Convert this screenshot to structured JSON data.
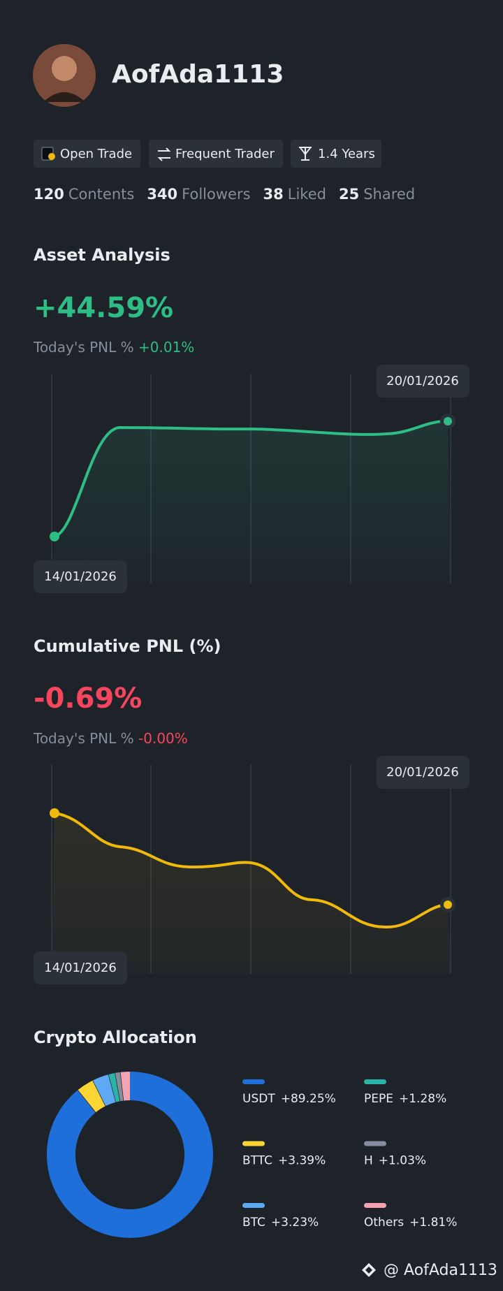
{
  "profile": {
    "name": "AofAda1113",
    "badges": [
      "Open Trade",
      "Frequent Trader",
      "1.4 Years"
    ],
    "stats": [
      {
        "value": 120,
        "label": "Contents"
      },
      {
        "value": 340,
        "label": "Followers"
      },
      {
        "value": 38,
        "label": "Liked"
      },
      {
        "value": 25,
        "label": "Shared"
      }
    ]
  },
  "asset_analysis": {
    "title": "Asset Analysis",
    "value": "+44.59%",
    "pnl_label": "Today's PNL %",
    "pnl_value": "+0.01%",
    "start_date": "14/01/2026",
    "end_date": "20/01/2026"
  },
  "cumulative_pnl": {
    "title": "Cumulative PNL (%)",
    "value": "-0.69%",
    "pnl_label": "Today's PNL %",
    "pnl_value": "-0.00%",
    "start_date": "14/01/2026",
    "end_date": "20/01/2026"
  },
  "chart_data": {
    "type": "donut",
    "title": "Crypto Allocation",
    "categories": [
      "USDT",
      "BTTC",
      "BTC",
      "PEPE",
      "H",
      "Others"
    ],
    "values": [
      89.25,
      3.39,
      3.23,
      1.28,
      1.03,
      1.81
    ],
    "value_labels": [
      "+89.25%",
      "+3.39%",
      "+3.23%",
      "+1.28%",
      "+1.03%",
      "+1.81%"
    ],
    "colors": [
      "#1f6fdb",
      "#fcd535",
      "#5ea8f4",
      "#2bb3a8",
      "#848e9c",
      "#f4a3b3"
    ]
  },
  "footer": "@ AofAda1113"
}
